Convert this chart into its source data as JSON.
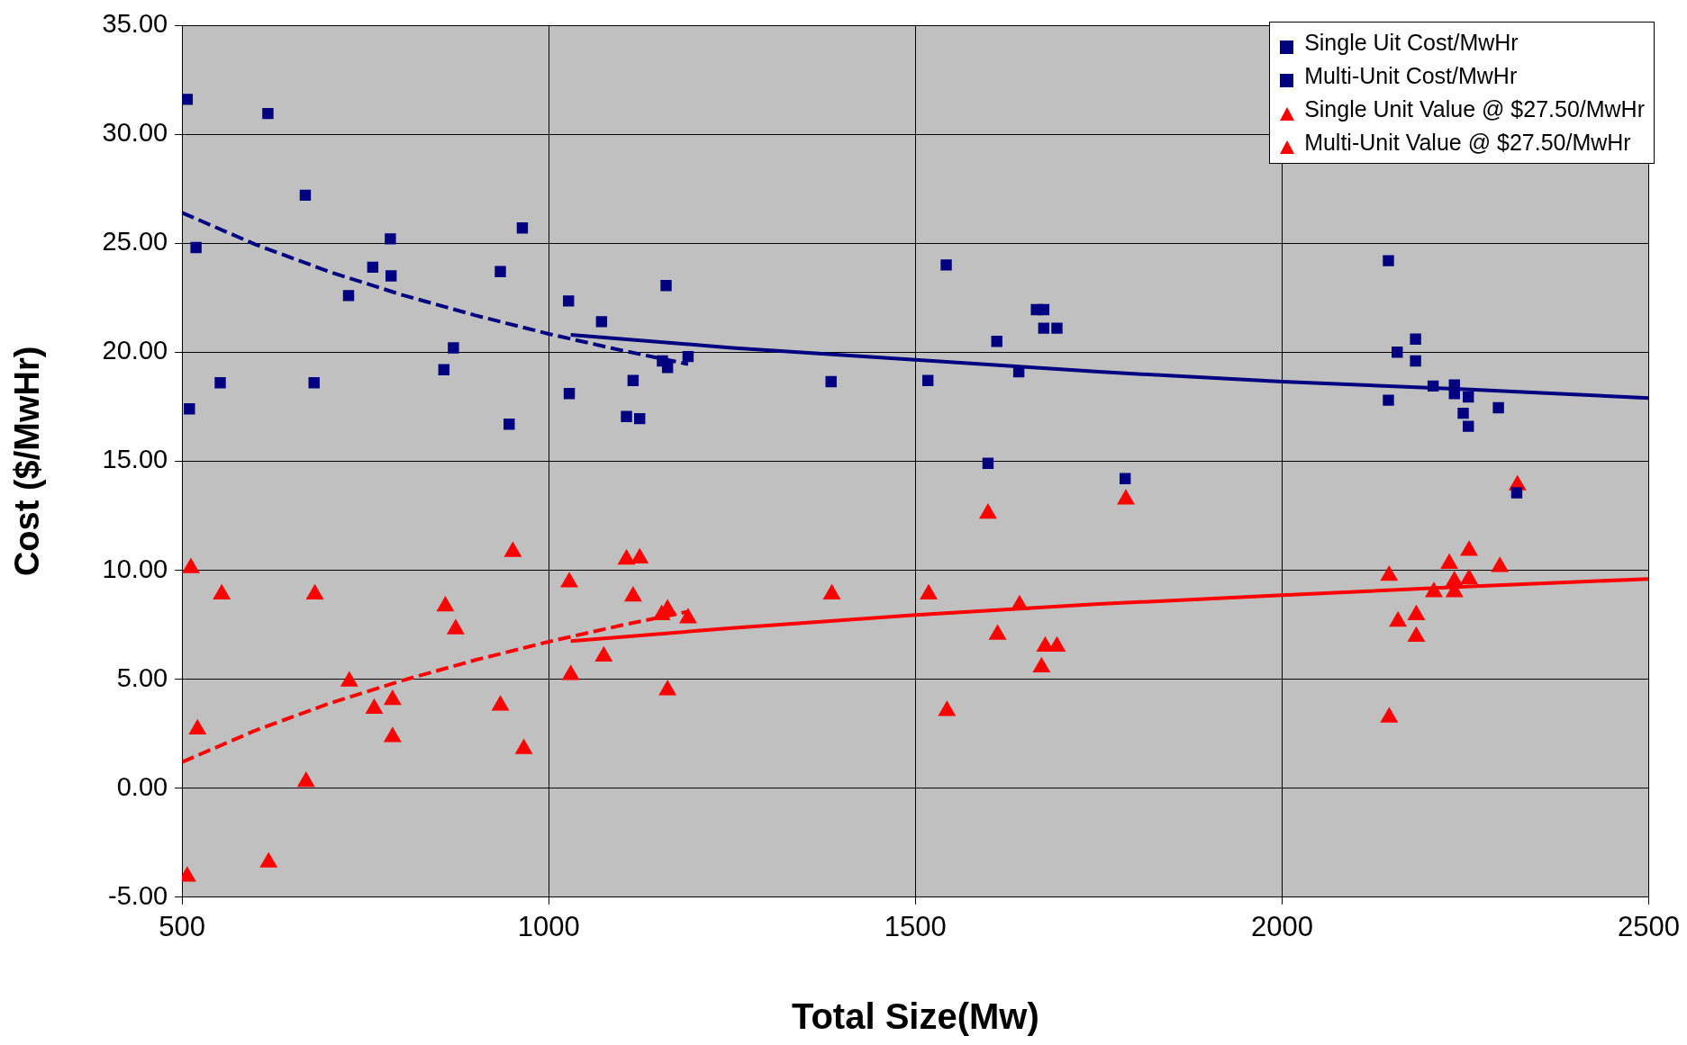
{
  "chart_data": {
    "type": "scatter",
    "xlabel": "Total Size(Mw)",
    "ylabel": "Cost ($/MwHr)",
    "xlim": [
      500,
      2500
    ],
    "xticks": [
      500,
      1000,
      1500,
      2000,
      2500
    ],
    "ylim": [
      -5,
      35
    ],
    "yticks": [
      {
        "value": -5,
        "label": "-5.00"
      },
      {
        "value": 0,
        "label": "0.00"
      },
      {
        "value": 5,
        "label": "5.00"
      },
      {
        "value": 10,
        "label": "10.00"
      },
      {
        "value": 15,
        "label": "15.00"
      },
      {
        "value": 20,
        "label": "20.00"
      },
      {
        "value": 25,
        "label": "25.00"
      },
      {
        "value": 30,
        "label": "30.00"
      },
      {
        "value": 35,
        "label": "35.00"
      }
    ],
    "grid": true,
    "legend": "top right",
    "series": [
      {
        "name": "Single Uit Cost/MwHr",
        "marker": "square",
        "color": "#000080",
        "x": [
          507,
          617,
          668,
          519,
          784,
          964,
          760,
          785,
          727,
          934,
          1027,
          1072,
          1160,
          870,
          857,
          552,
          680,
          510,
          946,
          1106,
          1124,
          1115,
          1155,
          1162,
          1190
        ],
        "values": [
          31.6,
          30.95,
          27.2,
          24.8,
          25.2,
          25.7,
          23.9,
          23.5,
          22.6,
          23.7,
          22.35,
          21.4,
          23.06,
          20.2,
          19.2,
          18.6,
          18.6,
          17.4,
          16.7,
          17.05,
          16.95,
          18.7,
          19.6,
          19.3,
          19.8
        ]
      },
      {
        "name": "Multi-Unit Cost/MwHr",
        "marker": "square",
        "color": "#000080",
        "x": [
          1028,
          1385,
          1542,
          1517,
          1611,
          1641,
          1599,
          1665,
          1675,
          1675,
          1693,
          1786,
          2145,
          2157,
          2182,
          2182,
          2145,
          2206,
          2235,
          2235,
          2254,
          2247,
          2254,
          2295,
          2320
        ],
        "values": [
          18.1,
          18.65,
          24.0,
          18.7,
          20.5,
          19.1,
          14.9,
          21.95,
          21.95,
          21.1,
          21.1,
          14.2,
          24.2,
          20.0,
          20.6,
          19.6,
          17.8,
          18.45,
          18.5,
          18.1,
          17.95,
          17.2,
          16.6,
          17.45,
          13.55
        ]
      },
      {
        "name": "Single Unit Value @ $27.50/MwHr",
        "marker": "triangle",
        "color": "#ff0000",
        "x": [
          512,
          554,
          681,
          521,
          507,
          618,
          669,
          728,
          762,
          787,
          787,
          859,
          873,
          934,
          951,
          966,
          1030,
          1075,
          1106,
          1124,
          1115,
          1162,
          1162,
          1154,
          1190
        ],
        "values": [
          10.1,
          8.9,
          8.9,
          2.7,
          -4.05,
          -3.4,
          0.3,
          4.9,
          3.65,
          4.05,
          2.35,
          8.35,
          7.3,
          3.8,
          10.85,
          1.8,
          5.2,
          6.05,
          10.5,
          10.55,
          8.8,
          4.5,
          8.2,
          7.95,
          7.8
        ]
      },
      {
        "name": "Multi-Unit Value @ $27.50/MwHr",
        "marker": "triangle",
        "color": "#ff0000",
        "x": [
          1028,
          1386,
          1518,
          1543,
          1599,
          1612,
          1642,
          1670,
          1672,
          1677,
          1693,
          1787,
          2146,
          2146,
          2158,
          2183,
          2183,
          2207,
          2228,
          2235,
          2235,
          2255,
          2255,
          2297,
          2321
        ],
        "values": [
          9.45,
          8.9,
          8.9,
          3.55,
          12.6,
          7.05,
          8.4,
          null,
          5.55,
          6.5,
          6.5,
          13.25,
          9.75,
          3.25,
          7.65,
          7.95,
          6.95,
          9.0,
          10.3,
          9.5,
          9.0,
          10.9,
          9.6,
          10.15,
          13.9
        ]
      },
      {
        "type": "line",
        "line_style": "dashed",
        "color": "#000080",
        "x": [
          500,
          600,
          700,
          800,
          900,
          1000,
          1100,
          1190
        ],
        "values": [
          26.4,
          24.94,
          23.7,
          22.63,
          21.69,
          20.84,
          20.08,
          19.45
        ]
      },
      {
        "type": "line",
        "line_style": "dashed",
        "color": "#ff0000",
        "x": [
          500,
          600,
          700,
          800,
          900,
          1000,
          1100,
          1190
        ],
        "values": [
          1.2,
          2.65,
          3.88,
          4.94,
          5.88,
          6.72,
          7.48,
          8.1
        ]
      },
      {
        "type": "line",
        "line_style": "solid",
        "color": "#000080",
        "x": [
          1030,
          1250,
          1500,
          1750,
          2000,
          2250,
          2500
        ],
        "values": [
          20.8,
          20.2,
          19.65,
          19.1,
          18.65,
          18.3,
          17.9
        ]
      },
      {
        "type": "line",
        "line_style": "solid",
        "color": "#ff0000",
        "x": [
          1030,
          1250,
          1500,
          1750,
          2000,
          2250,
          2500
        ],
        "values": [
          6.75,
          7.35,
          7.95,
          8.45,
          8.85,
          9.25,
          9.6
        ]
      }
    ]
  }
}
